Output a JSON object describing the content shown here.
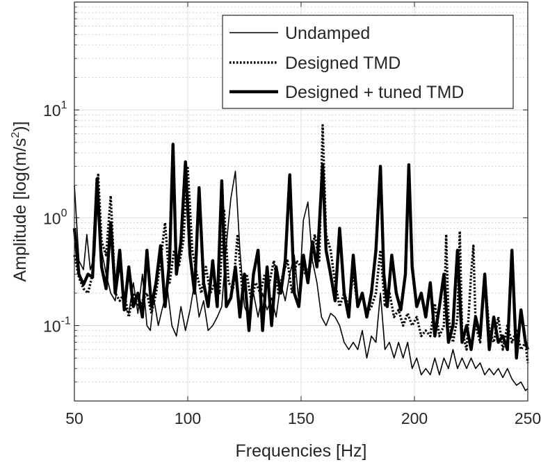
{
  "chart_data": {
    "type": "line",
    "title": "",
    "xlabel": "Frequencies [Hz]",
    "ylabel_main": "Amplitude [log(m/s",
    "ylabel_sup": "2",
    "ylabel_tail": ")]",
    "xlim": [
      50,
      250
    ],
    "ylim": [
      0.02,
      100
    ],
    "yscale": "log",
    "grid": true,
    "minor_grid": true,
    "legend_position": "top-right",
    "xticks": [
      50,
      100,
      150,
      200,
      250
    ],
    "xtick_labels": [
      "50",
      "100",
      "150",
      "200",
      "250"
    ],
    "yticks": [
      {
        "value": 0.1,
        "base": "10",
        "exp": "-1"
      },
      {
        "value": 1,
        "base": "10",
        "exp": "0"
      },
      {
        "value": 10,
        "base": "10",
        "exp": "1"
      }
    ],
    "series": [
      {
        "name": "Undamped",
        "style": "solid",
        "width": 1.6,
        "color": "#000000",
        "x": [
          50,
          52,
          54,
          55.5,
          57,
          59,
          60.5,
          62,
          64,
          66,
          68,
          70,
          72,
          74,
          76,
          78,
          80,
          82,
          83.5,
          85,
          87,
          89,
          91,
          93,
          95,
          97,
          99,
          101,
          103,
          105,
          107,
          109,
          111,
          113,
          115,
          117,
          119,
          121,
          123,
          125,
          127,
          129,
          131,
          133,
          135,
          137,
          139,
          141,
          143,
          145,
          147,
          149,
          151,
          153,
          155,
          157,
          159,
          161,
          163,
          165,
          167,
          169,
          171,
          173,
          175,
          177,
          179,
          181,
          183,
          185,
          187,
          189,
          191,
          193,
          195,
          197,
          199,
          201,
          203,
          205,
          207,
          209,
          211,
          213,
          215,
          217,
          219,
          221,
          223,
          225,
          227,
          229,
          231,
          233,
          235,
          237,
          239,
          241,
          243,
          245,
          247,
          249,
          250
        ],
        "y": [
          2.0,
          0.4,
          0.33,
          0.7,
          0.33,
          0.45,
          2.0,
          0.5,
          0.3,
          0.2,
          0.17,
          0.35,
          0.15,
          0.13,
          0.25,
          0.13,
          0.3,
          0.1,
          0.09,
          0.18,
          0.1,
          0.15,
          0.22,
          0.1,
          0.08,
          0.15,
          0.09,
          0.14,
          0.25,
          0.12,
          0.17,
          0.09,
          0.1,
          0.12,
          0.15,
          0.55,
          1.5,
          2.7,
          0.5,
          0.15,
          0.12,
          0.2,
          0.12,
          0.2,
          0.14,
          0.18,
          0.12,
          0.25,
          0.17,
          0.3,
          0.45,
          0.17,
          0.95,
          1.4,
          0.4,
          0.25,
          0.12,
          0.1,
          0.13,
          0.12,
          0.1,
          0.07,
          0.06,
          0.07,
          0.06,
          0.09,
          0.05,
          0.08,
          0.07,
          0.2,
          0.06,
          0.07,
          0.05,
          0.07,
          0.05,
          0.07,
          0.04,
          0.05,
          0.035,
          0.04,
          0.035,
          0.05,
          0.035,
          0.05,
          0.04,
          0.06,
          0.04,
          0.05,
          0.04,
          0.05,
          0.04,
          0.045,
          0.035,
          0.04,
          0.035,
          0.04,
          0.033,
          0.04,
          0.032,
          0.028,
          0.03,
          0.025,
          0.026
        ]
      },
      {
        "name": "Designed TMD",
        "style": "dotted",
        "width": 3.4,
        "color": "#000000",
        "x": [
          50,
          52,
          54,
          56,
          58,
          60.5,
          62,
          64,
          66,
          68,
          70,
          72,
          74,
          76,
          78,
          80,
          82,
          84,
          86,
          88,
          90,
          92,
          94,
          96,
          98,
          100,
          102,
          104,
          106,
          108,
          110,
          112,
          114,
          116,
          118,
          120,
          122,
          124,
          126,
          128,
          130,
          132,
          134,
          136,
          138,
          140,
          142,
          144,
          146,
          148,
          150,
          152,
          154,
          156,
          158,
          159.5,
          161,
          163,
          165,
          167,
          169,
          171,
          173,
          175,
          177,
          179,
          181,
          183,
          185,
          187,
          189,
          191,
          193,
          195,
          197,
          199,
          201,
          203,
          205,
          207,
          209,
          211,
          213,
          214,
          215,
          217,
          219,
          220,
          221,
          223,
          225,
          226,
          227,
          229,
          231,
          233,
          235,
          237,
          239,
          241,
          243,
          245,
          247,
          249,
          250
        ],
        "y": [
          0.45,
          0.28,
          0.22,
          0.2,
          0.3,
          2.5,
          0.6,
          0.45,
          1.6,
          0.2,
          0.17,
          0.2,
          0.12,
          0.2,
          0.15,
          0.17,
          0.2,
          0.13,
          0.2,
          0.4,
          0.9,
          0.25,
          0.5,
          0.35,
          0.6,
          2.9,
          0.5,
          0.3,
          0.2,
          0.35,
          0.2,
          0.25,
          0.2,
          1.2,
          0.25,
          0.22,
          0.7,
          0.22,
          0.3,
          0.17,
          0.25,
          0.2,
          0.3,
          0.25,
          0.4,
          0.2,
          0.3,
          0.4,
          0.2,
          0.4,
          0.35,
          0.3,
          0.35,
          0.7,
          0.4,
          7.2,
          0.7,
          0.5,
          0.25,
          0.15,
          0.2,
          0.15,
          0.3,
          0.15,
          0.2,
          0.13,
          0.15,
          0.2,
          0.5,
          0.15,
          0.2,
          0.12,
          0.14,
          0.1,
          0.13,
          0.1,
          0.12,
          0.08,
          0.09,
          0.08,
          0.16,
          0.08,
          0.1,
          0.7,
          0.12,
          0.07,
          0.12,
          0.75,
          0.09,
          0.06,
          0.3,
          0.55,
          0.1,
          0.07,
          0.3,
          0.09,
          0.07,
          0.12,
          0.06,
          0.1,
          0.07,
          0.09,
          0.06,
          0.07,
          0.045
        ]
      },
      {
        "name": "Designed + tuned TMD",
        "style": "solid",
        "width": 4.4,
        "color": "#000000",
        "x": [
          50,
          52,
          54,
          56,
          58,
          60,
          62,
          64,
          66,
          68,
          70,
          72,
          74,
          76,
          78,
          80,
          82,
          84,
          86,
          88,
          90,
          92,
          93.5,
          95,
          97,
          99,
          101,
          103,
          105,
          107,
          109,
          111,
          113,
          115,
          117,
          119,
          121,
          123,
          125,
          127,
          129,
          131,
          133,
          135,
          137,
          139,
          141,
          143,
          145,
          147,
          149,
          151,
          153,
          155,
          157,
          159.5,
          161,
          163,
          165,
          167,
          169,
          171,
          173,
          175,
          177,
          179,
          181,
          183,
          185,
          186.5,
          188,
          190,
          192,
          194,
          196,
          197.5,
          199,
          201,
          203,
          205,
          207,
          209,
          211,
          213,
          215,
          217,
          219,
          221,
          223,
          225,
          227,
          229,
          231,
          233,
          235,
          237,
          239,
          241,
          243,
          245,
          247,
          249,
          250
        ],
        "y": [
          0.8,
          0.3,
          0.24,
          0.3,
          0.28,
          2.3,
          0.35,
          0.22,
          0.9,
          0.2,
          0.5,
          0.14,
          0.35,
          0.15,
          0.2,
          0.12,
          0.5,
          0.15,
          0.25,
          0.55,
          0.15,
          0.4,
          4.8,
          0.3,
          0.6,
          3.3,
          0.45,
          0.2,
          1.9,
          0.25,
          0.15,
          0.4,
          0.15,
          2.2,
          0.15,
          0.18,
          0.35,
          0.12,
          0.3,
          0.09,
          0.3,
          0.5,
          0.09,
          0.35,
          0.1,
          0.35,
          0.2,
          0.4,
          2.5,
          0.2,
          0.15,
          0.45,
          0.25,
          0.6,
          0.35,
          3.1,
          0.5,
          0.3,
          0.17,
          0.8,
          0.2,
          0.12,
          0.45,
          0.15,
          0.2,
          0.12,
          0.2,
          0.5,
          3.0,
          0.3,
          0.15,
          0.45,
          0.2,
          0.14,
          0.3,
          3.1,
          0.35,
          0.15,
          0.2,
          0.12,
          0.25,
          0.08,
          0.15,
          0.3,
          0.07,
          0.1,
          0.5,
          0.07,
          0.1,
          0.06,
          0.12,
          0.08,
          0.3,
          0.06,
          0.12,
          0.07,
          0.08,
          0.06,
          0.5,
          0.05,
          0.14,
          0.07,
          0.06
        ]
      }
    ]
  }
}
